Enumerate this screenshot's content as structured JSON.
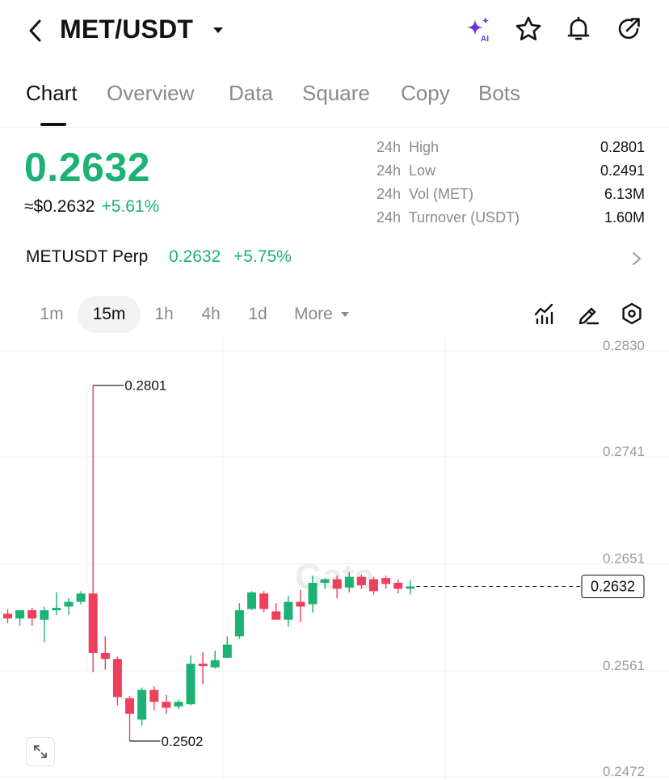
{
  "header": {
    "pair": "MET/USDT",
    "icons": [
      "back-icon",
      "caret-down-icon",
      "ai-sparkle-icon",
      "star-icon",
      "bell-icon",
      "share-icon"
    ]
  },
  "tabs": [
    {
      "label": "Chart",
      "active": true
    },
    {
      "label": "Overview",
      "active": false
    },
    {
      "label": "Data",
      "active": false
    },
    {
      "label": "Square",
      "active": false
    },
    {
      "label": "Copy",
      "active": false
    },
    {
      "label": "Bots",
      "active": false
    }
  ],
  "price": {
    "last": "0.2632",
    "usd_equiv": "≈$0.2632",
    "change_pct": "+5.61%",
    "color_up": "#1bb273",
    "color_down": "#ee3f5c"
  },
  "stats": [
    {
      "label": "24h  High",
      "value": "0.2801"
    },
    {
      "label": "24h  Low",
      "value": "0.2491"
    },
    {
      "label": "24h  Vol (MET)",
      "value": "6.13M"
    },
    {
      "label": "24h  Turnover (USDT)",
      "value": "1.60M"
    }
  ],
  "perp": {
    "name": "METUSDT Perp",
    "price": "0.2632",
    "change": "+5.75%"
  },
  "intervals": [
    {
      "label": "1m",
      "active": false
    },
    {
      "label": "15m",
      "active": true
    },
    {
      "label": "1h",
      "active": false
    },
    {
      "label": "4h",
      "active": false
    },
    {
      "label": "1d",
      "active": false
    },
    {
      "label": "More",
      "active": false
    }
  ],
  "tool_icons": [
    "indicator-icon",
    "draw-pen-icon",
    "settings-hex-icon"
  ],
  "chart_data": {
    "type": "candlestick",
    "interval": "15m",
    "y_ticks": [
      "0.2830",
      "0.2741",
      "0.2651",
      "0.2561",
      "0.2472"
    ],
    "ylim": [
      0.2472,
      0.283
    ],
    "grid": true,
    "watermark": "Gate",
    "current_price_label": "0.2632",
    "high_marker": {
      "label": "0.2801",
      "value": 0.2801
    },
    "low_marker": {
      "label": "0.2502",
      "value": 0.2502
    },
    "candles": [
      {
        "o": 0.2609,
        "h": 0.2613,
        "l": 0.2601,
        "c": 0.2605
      },
      {
        "o": 0.2605,
        "h": 0.2611,
        "l": 0.2599,
        "c": 0.2612
      },
      {
        "o": 0.2612,
        "h": 0.2614,
        "l": 0.2599,
        "c": 0.2605
      },
      {
        "o": 0.2604,
        "h": 0.2615,
        "l": 0.2585,
        "c": 0.2612
      },
      {
        "o": 0.2612,
        "h": 0.2627,
        "l": 0.2608,
        "c": 0.2614
      },
      {
        "o": 0.2615,
        "h": 0.2622,
        "l": 0.2608,
        "c": 0.2619
      },
      {
        "o": 0.2619,
        "h": 0.2628,
        "l": 0.2617,
        "c": 0.2626
      },
      {
        "o": 0.2626,
        "h": 0.2801,
        "l": 0.256,
        "c": 0.2576
      },
      {
        "o": 0.2576,
        "h": 0.259,
        "l": 0.2562,
        "c": 0.2571
      },
      {
        "o": 0.2571,
        "h": 0.2573,
        "l": 0.2532,
        "c": 0.2539
      },
      {
        "o": 0.2538,
        "h": 0.254,
        "l": 0.2502,
        "c": 0.2525
      },
      {
        "o": 0.252,
        "h": 0.2547,
        "l": 0.2515,
        "c": 0.2545
      },
      {
        "o": 0.2545,
        "h": 0.2548,
        "l": 0.2528,
        "c": 0.2535
      },
      {
        "o": 0.2535,
        "h": 0.2541,
        "l": 0.2525,
        "c": 0.253
      },
      {
        "o": 0.2531,
        "h": 0.2537,
        "l": 0.2529,
        "c": 0.2535
      },
      {
        "o": 0.2533,
        "h": 0.2574,
        "l": 0.2532,
        "c": 0.2567
      },
      {
        "o": 0.2567,
        "h": 0.2577,
        "l": 0.255,
        "c": 0.2565
      },
      {
        "o": 0.2564,
        "h": 0.2578,
        "l": 0.2563,
        "c": 0.257
      },
      {
        "o": 0.2572,
        "h": 0.259,
        "l": 0.2572,
        "c": 0.2583
      },
      {
        "o": 0.259,
        "h": 0.2618,
        "l": 0.2588,
        "c": 0.2612
      },
      {
        "o": 0.2613,
        "h": 0.2628,
        "l": 0.2612,
        "c": 0.2627
      },
      {
        "o": 0.2626,
        "h": 0.2628,
        "l": 0.261,
        "c": 0.2613
      },
      {
        "o": 0.2611,
        "h": 0.2618,
        "l": 0.2605,
        "c": 0.2604
      },
      {
        "o": 0.2604,
        "h": 0.2624,
        "l": 0.2598,
        "c": 0.2619
      },
      {
        "o": 0.2619,
        "h": 0.2629,
        "l": 0.2602,
        "c": 0.2615
      },
      {
        "o": 0.2617,
        "h": 0.2641,
        "l": 0.261,
        "c": 0.2635
      },
      {
        "o": 0.2635,
        "h": 0.2639,
        "l": 0.263,
        "c": 0.2638
      },
      {
        "o": 0.2638,
        "h": 0.2641,
        "l": 0.2622,
        "c": 0.263
      },
      {
        "o": 0.2631,
        "h": 0.2644,
        "l": 0.2627,
        "c": 0.264
      },
      {
        "o": 0.264,
        "h": 0.2642,
        "l": 0.263,
        "c": 0.2633
      },
      {
        "o": 0.2638,
        "h": 0.264,
        "l": 0.2625,
        "c": 0.2628
      },
      {
        "o": 0.2639,
        "h": 0.2641,
        "l": 0.263,
        "c": 0.2634
      },
      {
        "o": 0.2635,
        "h": 0.2638,
        "l": 0.2626,
        "c": 0.263
      },
      {
        "o": 0.263,
        "h": 0.2637,
        "l": 0.2625,
        "c": 0.2632
      }
    ]
  }
}
